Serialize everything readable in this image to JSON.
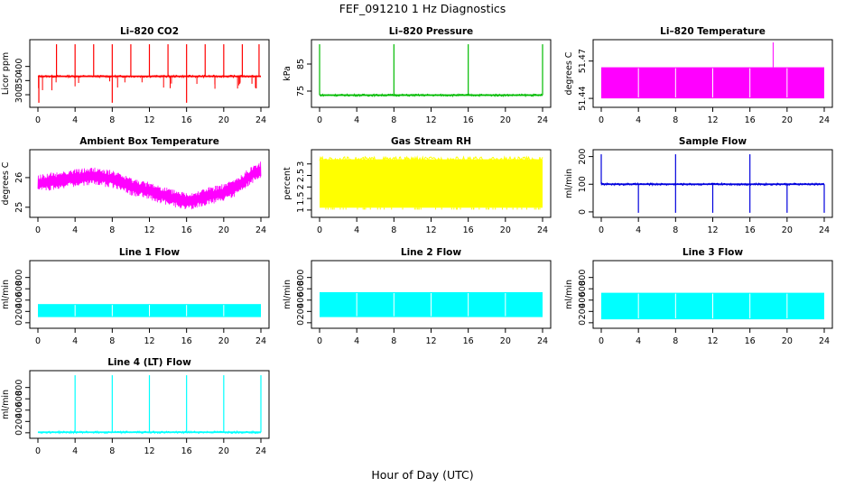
{
  "figure": {
    "title": "FEF_091210  1 Hz Diagnostics",
    "xlabel": "Hour of Day (UTC)"
  },
  "chart_data": [
    {
      "type": "line",
      "title": "Li–820 CO2",
      "ylabel": "Licor ppm",
      "color": "#ff0000",
      "xlim": [
        0,
        24
      ],
      "ylim": [
        265,
        485
      ],
      "xticks": [
        "0",
        "4",
        "8",
        "12",
        "16",
        "20",
        "24"
      ],
      "yticks": [
        300,
        350,
        400
      ],
      "baseline": 365,
      "spikes_high": [
        2,
        4,
        6,
        8,
        10,
        12,
        14,
        16,
        18,
        20,
        22,
        23.8
      ],
      "spikes_low": [
        0.1,
        8,
        16
      ]
    },
    {
      "type": "line",
      "title": "Li–820 Pressure",
      "ylabel": "kPa",
      "color": "#00bb00",
      "xlim": [
        0,
        24
      ],
      "ylim": [
        70,
        93
      ],
      "xticks": [
        "0",
        "4",
        "8",
        "12",
        "16",
        "20",
        "24"
      ],
      "yticks": [
        75,
        85
      ],
      "baseline": 73.5,
      "spikes_high": [
        0,
        8,
        16,
        24
      ]
    },
    {
      "type": "area",
      "title": "Li–820 Temperature",
      "ylabel": "degrees C",
      "color": "#ff00ff",
      "xlim": [
        0,
        24
      ],
      "ylim": [
        51.435,
        51.485
      ],
      "xticks": [
        "0",
        "4",
        "8",
        "12",
        "16",
        "20",
        "24"
      ],
      "yticks": [
        51.44,
        51.47
      ],
      "band_low": 51.44,
      "band_high": 51.465,
      "spike_x": 18.5,
      "spike_y": 51.485
    },
    {
      "type": "line",
      "title": "Ambient Box Temperature",
      "ylabel": "degrees C",
      "color": "#ff00ff",
      "xlim": [
        0,
        24
      ],
      "ylim": [
        24.75,
        26.85
      ],
      "xticks": [
        "0",
        "4",
        "8",
        "12",
        "16",
        "20",
        "24"
      ],
      "yticks": [
        25.0,
        26.0
      ],
      "trend_x": [
        0,
        3,
        6,
        8,
        10,
        12,
        14,
        16,
        17,
        18,
        20,
        21.5,
        23,
        24
      ],
      "trend_y": [
        25.8,
        25.95,
        26.05,
        25.95,
        25.7,
        25.55,
        25.35,
        25.2,
        25.25,
        25.35,
        25.5,
        25.7,
        26.1,
        26.25
      ]
    },
    {
      "type": "line",
      "title": "Gas Stream RH",
      "ylabel": "percent",
      "color": "#ffff00",
      "xlim": [
        0,
        24
      ],
      "ylim": [
        0.8,
        3.5
      ],
      "xticks": [
        "0",
        "4",
        "8",
        "12",
        "16",
        "20",
        "24"
      ],
      "yticks": [
        1.0,
        1.5,
        2.0,
        2.5,
        3.0
      ],
      "band_low": 1.1,
      "band_high": 3.2
    },
    {
      "type": "line",
      "title": "Sample Flow",
      "ylabel": "ml/min",
      "color": "#0000dd",
      "xlim": [
        0,
        24
      ],
      "ylim": [
        -10,
        215
      ],
      "xticks": [
        "0",
        "4",
        "8",
        "12",
        "16",
        "20",
        "24"
      ],
      "yticks": [
        0,
        100,
        200
      ],
      "baseline": 100,
      "spikes_high": [
        0,
        8,
        16
      ],
      "spikes_low": [
        4,
        8,
        12,
        16,
        20,
        24
      ]
    },
    {
      "type": "area",
      "title": "Line 1 Flow",
      "ylabel": "ml/min",
      "color": "#00ffff",
      "xlim": [
        0,
        24
      ],
      "ylim": [
        -50,
        1050
      ],
      "xticks": [
        "0",
        "4",
        "8",
        "12",
        "16",
        "20",
        "24"
      ],
      "yticks": [
        0,
        200,
        400,
        600,
        800
      ],
      "band_low": 100,
      "band_high": 330
    },
    {
      "type": "area",
      "title": "Line 2 Flow",
      "ylabel": "ml/min",
      "color": "#00ffff",
      "xlim": [
        0,
        24
      ],
      "ylim": [
        -50,
        1050
      ],
      "xticks": [
        "0",
        "4",
        "8",
        "12",
        "16",
        "20",
        "24"
      ],
      "yticks": [
        0,
        200,
        400,
        600,
        800
      ],
      "band_low": 100,
      "band_high": 540
    },
    {
      "type": "area",
      "title": "Line 3 Flow",
      "ylabel": "ml/min",
      "color": "#00ffff",
      "xlim": [
        0,
        24
      ],
      "ylim": [
        -50,
        1050
      ],
      "xticks": [
        "0",
        "4",
        "8",
        "12",
        "16",
        "20",
        "24"
      ],
      "yticks": [
        0,
        200,
        400,
        600,
        800
      ],
      "band_low": 60,
      "band_high": 530
    },
    {
      "type": "line",
      "title": "Line 4 (LT) Flow",
      "ylabel": "ml/min",
      "color": "#00ffff",
      "xlim": [
        0,
        24
      ],
      "ylim": [
        -50,
        1050
      ],
      "xticks": [
        "0",
        "4",
        "8",
        "12",
        "16",
        "20",
        "24"
      ],
      "yticks": [
        0,
        200,
        400,
        600,
        800
      ],
      "baseline": 10,
      "spikes_high": [
        4,
        8,
        12,
        16,
        20,
        24
      ]
    }
  ]
}
